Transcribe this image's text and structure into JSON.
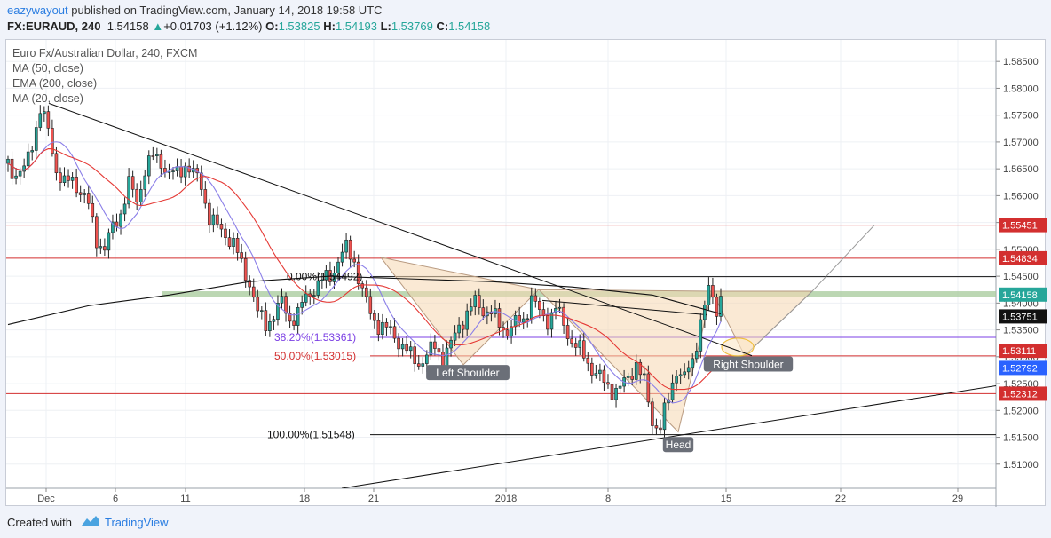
{
  "header": {
    "author": "eazywayout",
    "published_text": " published on TradingView.com, January 14, 2018 19:58 UTC",
    "symbol": "FX:EURAUD, 240",
    "last": "1.54158",
    "change_arrow": "▲",
    "change": "+0.01703 (+1.12%)",
    "o_label": "O:",
    "o_val": "1.53825",
    "h_label": "H:",
    "h_val": "1.54193",
    "l_label": "L:",
    "l_val": "1.53769",
    "c_label": "C:",
    "c_val": "1.54158"
  },
  "legend": {
    "title": "Euro Fx/Australian Dollar, 240, FXCM",
    "ma50": "MA (50, close)",
    "ema200": "EMA (200, close)",
    "ma20": "MA (20, close)"
  },
  "footer": {
    "created_with": "Created with",
    "brand": "TradingView"
  },
  "colors": {
    "up": "#26a69a",
    "down": "#ef5350",
    "candle": "#222222",
    "ma50": "#e53935",
    "ema200": "#111111",
    "ma20": "#8b7fe8",
    "hline": "#d32f2f",
    "zone": "#a5c99a"
  },
  "chart_data": {
    "type": "candlestick",
    "symbol": "FX:EURAUD",
    "timeframe": "240",
    "ylim": [
      1.5055,
      1.589
    ],
    "y_ticks": [
      "1.58500",
      "1.58000",
      "1.57500",
      "1.57000",
      "1.56500",
      "1.56000",
      "1.55500",
      "1.55000",
      "1.54500",
      "1.54000",
      "1.53500",
      "1.53000",
      "1.52500",
      "1.52000",
      "1.51500",
      "1.51000"
    ],
    "x_ticks": [
      "Dec",
      "6",
      "11",
      "18",
      "21",
      "2018",
      "8",
      "15",
      "22",
      "29"
    ],
    "price_labels": [
      {
        "value": "1.55451",
        "color": "#d32f2f"
      },
      {
        "value": "1.54834",
        "color": "#d32f2f"
      },
      {
        "value": "1.54158",
        "color": "#26a69a"
      },
      {
        "value": "1.53751",
        "color": "#111111"
      },
      {
        "value": "1.53111",
        "color": "#d32f2f"
      },
      {
        "value": "1.52792",
        "color": "#2a62ff"
      },
      {
        "value": "1.52312",
        "color": "#d32f2f"
      }
    ],
    "fib_levels": [
      {
        "label": "0.00%(1.54492)",
        "value": 1.54492,
        "color": "#111111"
      },
      {
        "label": "38.20%(1.53361)",
        "value": 1.53361,
        "color": "#7b3fe4"
      },
      {
        "label": "50.00%(1.53015)",
        "value": 1.53015,
        "color": "#d32f2f"
      },
      {
        "label": "100.00%(1.51548)",
        "value": 1.51548,
        "color": "#111111"
      }
    ],
    "pattern_labels": [
      "Left Shoulder",
      "Head",
      "Right Shoulder"
    ],
    "close_path": [
      [
        0,
        1.566
      ],
      [
        6,
        1.564
      ],
      [
        12,
        1.5645
      ],
      [
        18,
        1.57
      ],
      [
        24,
        1.576
      ],
      [
        30,
        1.572
      ],
      [
        36,
        1.565
      ],
      [
        42,
        1.562
      ],
      [
        48,
        1.563
      ],
      [
        54,
        1.561
      ],
      [
        60,
        1.558
      ],
      [
        66,
        1.552
      ],
      [
        72,
        1.55
      ],
      [
        78,
        1.554
      ],
      [
        84,
        1.557
      ],
      [
        90,
        1.562
      ],
      [
        96,
        1.559
      ],
      [
        102,
        1.565
      ],
      [
        108,
        1.567
      ],
      [
        114,
        1.5665
      ],
      [
        120,
        1.564
      ],
      [
        126,
        1.564
      ],
      [
        132,
        1.566
      ],
      [
        138,
        1.564
      ],
      [
        144,
        1.562
      ],
      [
        150,
        1.556
      ],
      [
        156,
        1.554
      ],
      [
        162,
        1.553
      ],
      [
        168,
        1.551
      ],
      [
        174,
        1.547
      ],
      [
        180,
        1.544
      ],
      [
        186,
        1.538
      ],
      [
        192,
        1.536
      ],
      [
        198,
        1.538
      ],
      [
        204,
        1.54
      ],
      [
        210,
        1.537
      ],
      [
        216,
        1.538
      ],
      [
        222,
        1.541
      ],
      [
        228,
        1.543
      ],
      [
        234,
        1.544
      ],
      [
        240,
        1.545
      ],
      [
        246,
        1.548
      ],
      [
        252,
        1.55
      ],
      [
        258,
        1.548
      ],
      [
        264,
        1.542
      ],
      [
        270,
        1.538
      ],
      [
        276,
        1.536
      ],
      [
        282,
        1.535
      ],
      [
        288,
        1.534
      ],
      [
        294,
        1.532
      ],
      [
        300,
        1.53
      ],
      [
        306,
        1.529
      ],
      [
        312,
        1.53
      ],
      [
        318,
        1.532
      ],
      [
        324,
        1.53
      ],
      [
        330,
        1.532
      ],
      [
        336,
        1.536
      ],
      [
        342,
        1.538
      ],
      [
        348,
        1.54
      ],
      [
        354,
        1.539
      ],
      [
        360,
        1.538
      ],
      [
        366,
        1.536
      ],
      [
        372,
        1.535
      ],
      [
        378,
        1.536
      ],
      [
        384,
        1.537
      ],
      [
        390,
        1.541
      ],
      [
        396,
        1.538
      ],
      [
        402,
        1.537
      ],
      [
        408,
        1.539
      ],
      [
        414,
        1.536
      ],
      [
        420,
        1.533
      ],
      [
        426,
        1.531
      ],
      [
        432,
        1.529
      ],
      [
        438,
        1.527
      ],
      [
        444,
        1.525
      ],
      [
        450,
        1.524
      ],
      [
        456,
        1.524
      ],
      [
        462,
        1.526
      ],
      [
        468,
        1.529
      ],
      [
        474,
        1.525
      ],
      [
        480,
        1.518
      ],
      [
        486,
        1.517
      ],
      [
        492,
        1.522
      ],
      [
        498,
        1.528
      ],
      [
        504,
        1.526
      ],
      [
        510,
        1.529
      ],
      [
        516,
        1.537
      ],
      [
        522,
        1.542
      ],
      [
        528,
        1.539
      ],
      [
        531,
        1.5416
      ]
    ]
  }
}
